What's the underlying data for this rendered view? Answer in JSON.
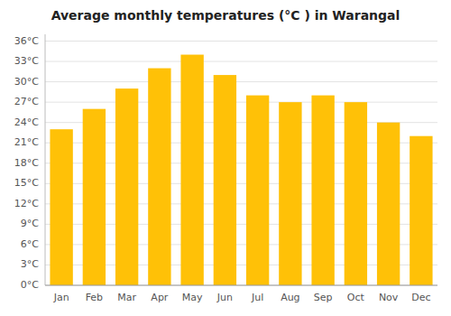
{
  "chart_data": {
    "type": "bar",
    "title": "Average monthly temperatures (°C ) in Warangal",
    "categories": [
      "Jan",
      "Feb",
      "Mar",
      "Apr",
      "May",
      "Jun",
      "Jul",
      "Aug",
      "Sep",
      "Oct",
      "Nov",
      "Dec"
    ],
    "values": [
      23,
      26,
      29,
      32,
      34,
      31,
      28,
      27,
      28,
      27,
      24,
      22
    ],
    "color": "#FFC107",
    "ylim": [
      0,
      37
    ],
    "yticks": [
      {
        "value": 0,
        "label": "0°C"
      },
      {
        "value": 3,
        "label": "3°C"
      },
      {
        "value": 6,
        "label": "6°C"
      },
      {
        "value": 9,
        "label": "9°C"
      },
      {
        "value": 12,
        "label": "12°C"
      },
      {
        "value": 15,
        "label": "15°C"
      },
      {
        "value": 18,
        "label": "18°C"
      },
      {
        "value": 21,
        "label": "21°C"
      },
      {
        "value": 24,
        "label": "24°C"
      },
      {
        "value": 27,
        "label": "27°C"
      },
      {
        "value": 30,
        "label": "30°C"
      },
      {
        "value": 33,
        "label": "33°C"
      },
      {
        "value": 36,
        "label": "36°C"
      }
    ],
    "grid": true
  }
}
